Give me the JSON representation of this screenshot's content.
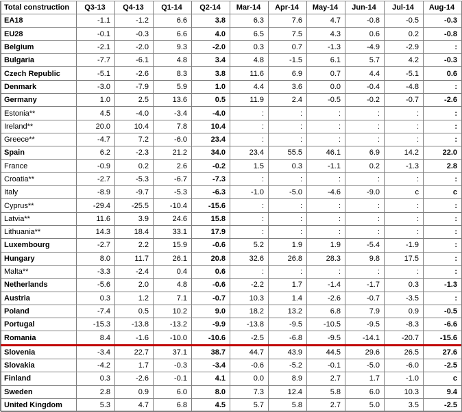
{
  "header": [
    "Total construction",
    "Q3-13",
    "Q4-13",
    "Q1-14",
    "Q2-14",
    "Mar-14",
    "Apr-14",
    "May-14",
    "Jun-14",
    "Jul-14",
    "Aug-14"
  ],
  "rows": [
    [
      "EA18",
      "-1.1",
      "-1.2",
      "6.6",
      "3.8",
      "6.3",
      "7.6",
      "4.7",
      "-0.8",
      "-0.5",
      "-0.3"
    ],
    [
      "EU28",
      "-0.1",
      "-0.3",
      "6.6",
      "4.0",
      "6.5",
      "7.5",
      "4.3",
      "0.6",
      "0.2",
      "-0.8"
    ],
    [
      "Belgium",
      "-2.1",
      "-2.0",
      "9.3",
      "-2.0",
      "0.3",
      "0.7",
      "-1.3",
      "-4.9",
      "-2.9",
      ":"
    ],
    [
      "Bulgaria",
      "-7.7",
      "-6.1",
      "4.8",
      "3.4",
      "4.8",
      "-1.5",
      "6.1",
      "5.7",
      "4.2",
      "-0.3"
    ],
    [
      "Czech Republic",
      "-5.1",
      "-2.6",
      "8.3",
      "3.8",
      "11.6",
      "6.9",
      "0.7",
      "4.4",
      "-5.1",
      "0.6"
    ],
    [
      "Denmark",
      "-3.0",
      "-7.9",
      "5.9",
      "1.0",
      "4.4",
      "3.6",
      "0.0",
      "-0.4",
      "-4.8",
      ":"
    ],
    [
      "Germany",
      "1.0",
      "2.5",
      "13.6",
      "0.5",
      "11.9",
      "2.4",
      "-0.5",
      "-0.2",
      "-0.7",
      "-2.6"
    ],
    [
      "Estonia**",
      "4.5",
      "-4.0",
      "-3.4",
      "-4.0",
      ":",
      ":",
      ":",
      ":",
      ":",
      ":"
    ],
    [
      "Ireland**",
      "20.0",
      "10.4",
      "7.8",
      "10.4",
      ":",
      ":",
      ":",
      ":",
      ":",
      ":"
    ],
    [
      "Greece**",
      "-4.7",
      "7.2",
      "-6.0",
      "23.4",
      ":",
      ":",
      ":",
      ":",
      ":",
      ":"
    ],
    [
      "Spain",
      "6.2",
      "-2.3",
      "21.2",
      "34.0",
      "23.4",
      "55.5",
      "46.1",
      "6.9",
      "14.2",
      "22.0"
    ],
    [
      "France",
      "-0.9",
      "0.2",
      "2.6",
      "-0.2",
      "1.5",
      "0.3",
      "-1.1",
      "0.2",
      "-1.3",
      "2.8"
    ],
    [
      "Croatia**",
      "-2.7",
      "-5.3",
      "-6.7",
      "-7.3",
      ":",
      ":",
      ":",
      ":",
      ":",
      ":"
    ],
    [
      "Italy",
      "-8.9",
      "-9.7",
      "-5.3",
      "-6.3",
      "-1.0",
      "-5.0",
      "-4.6",
      "-9.0",
      "c",
      "c"
    ],
    [
      "Cyprus**",
      "-29.4",
      "-25.5",
      "-10.4",
      "-15.6",
      ":",
      ":",
      ":",
      ":",
      ":",
      ":"
    ],
    [
      "Latvia**",
      "11.6",
      "3.9",
      "24.6",
      "15.8",
      ":",
      ":",
      ":",
      ":",
      ":",
      ":"
    ],
    [
      "Lithuania**",
      "14.3",
      "18.4",
      "33.1",
      "17.9",
      ":",
      ":",
      ":",
      ":",
      ":",
      ":"
    ],
    [
      "Luxembourg",
      "-2.7",
      "2.2",
      "15.9",
      "-0.6",
      "5.2",
      "1.9",
      "1.9",
      "-5.4",
      "-1.9",
      ":"
    ],
    [
      "Hungary",
      "8.0",
      "11.7",
      "26.1",
      "20.8",
      "32.6",
      "26.8",
      "28.3",
      "9.8",
      "17.5",
      ":"
    ],
    [
      "Malta**",
      "-3.3",
      "-2.4",
      "0.4",
      "0.6",
      ":",
      ":",
      ":",
      ":",
      ":",
      ":"
    ],
    [
      "Netherlands",
      "-5.6",
      "2.0",
      "4.8",
      "-0.6",
      "-2.2",
      "1.7",
      "-1.4",
      "-1.7",
      "0.3",
      "-1.3"
    ],
    [
      "Austria",
      "0.3",
      "1.2",
      "7.1",
      "-0.7",
      "10.3",
      "1.4",
      "-2.6",
      "-0.7",
      "-3.5",
      ":"
    ],
    [
      "Poland",
      "-7.4",
      "0.5",
      "10.2",
      "9.0",
      "18.2",
      "13.2",
      "6.8",
      "7.9",
      "0.9",
      "-0.5"
    ],
    [
      "Portugal",
      "-15.3",
      "-13.8",
      "-13.2",
      "-9.9",
      "-13.8",
      "-9.5",
      "-10.5",
      "-9.5",
      "-8.3",
      "-6.6"
    ],
    [
      "Romania",
      "8.4",
      "-1.6",
      "-10.0",
      "-10.6",
      "-2.5",
      "-6.8",
      "-9.5",
      "-14.1",
      "-20.7",
      "-15.6"
    ],
    [
      "Slovenia",
      "-3.4",
      "22.7",
      "37.1",
      "38.7",
      "44.7",
      "43.9",
      "44.5",
      "29.6",
      "26.5",
      "27.6"
    ],
    [
      "Slovakia",
      "-4.2",
      "1.7",
      "-0.3",
      "-3.4",
      "-0.6",
      "-5.2",
      "-0.1",
      "-5.0",
      "-6.0",
      "-2.5"
    ],
    [
      "Finland",
      "0.3",
      "-2.6",
      "-0.1",
      "4.1",
      "0.0",
      "8.9",
      "2.7",
      "1.7",
      "-1.0",
      "c"
    ],
    [
      "Sweden",
      "2.8",
      "0.9",
      "6.0",
      "8.0",
      "7.3",
      "12.4",
      "5.8",
      "6.0",
      "10.3",
      "9.4"
    ],
    [
      "United Kingdom",
      "5.3",
      "4.7",
      "6.8",
      "4.5",
      "5.7",
      "5.8",
      "2.7",
      "5.0",
      "3.5",
      "-2.5"
    ]
  ],
  "colors": {
    "grid": "#7f7f7f",
    "separator": "#c00000"
  }
}
